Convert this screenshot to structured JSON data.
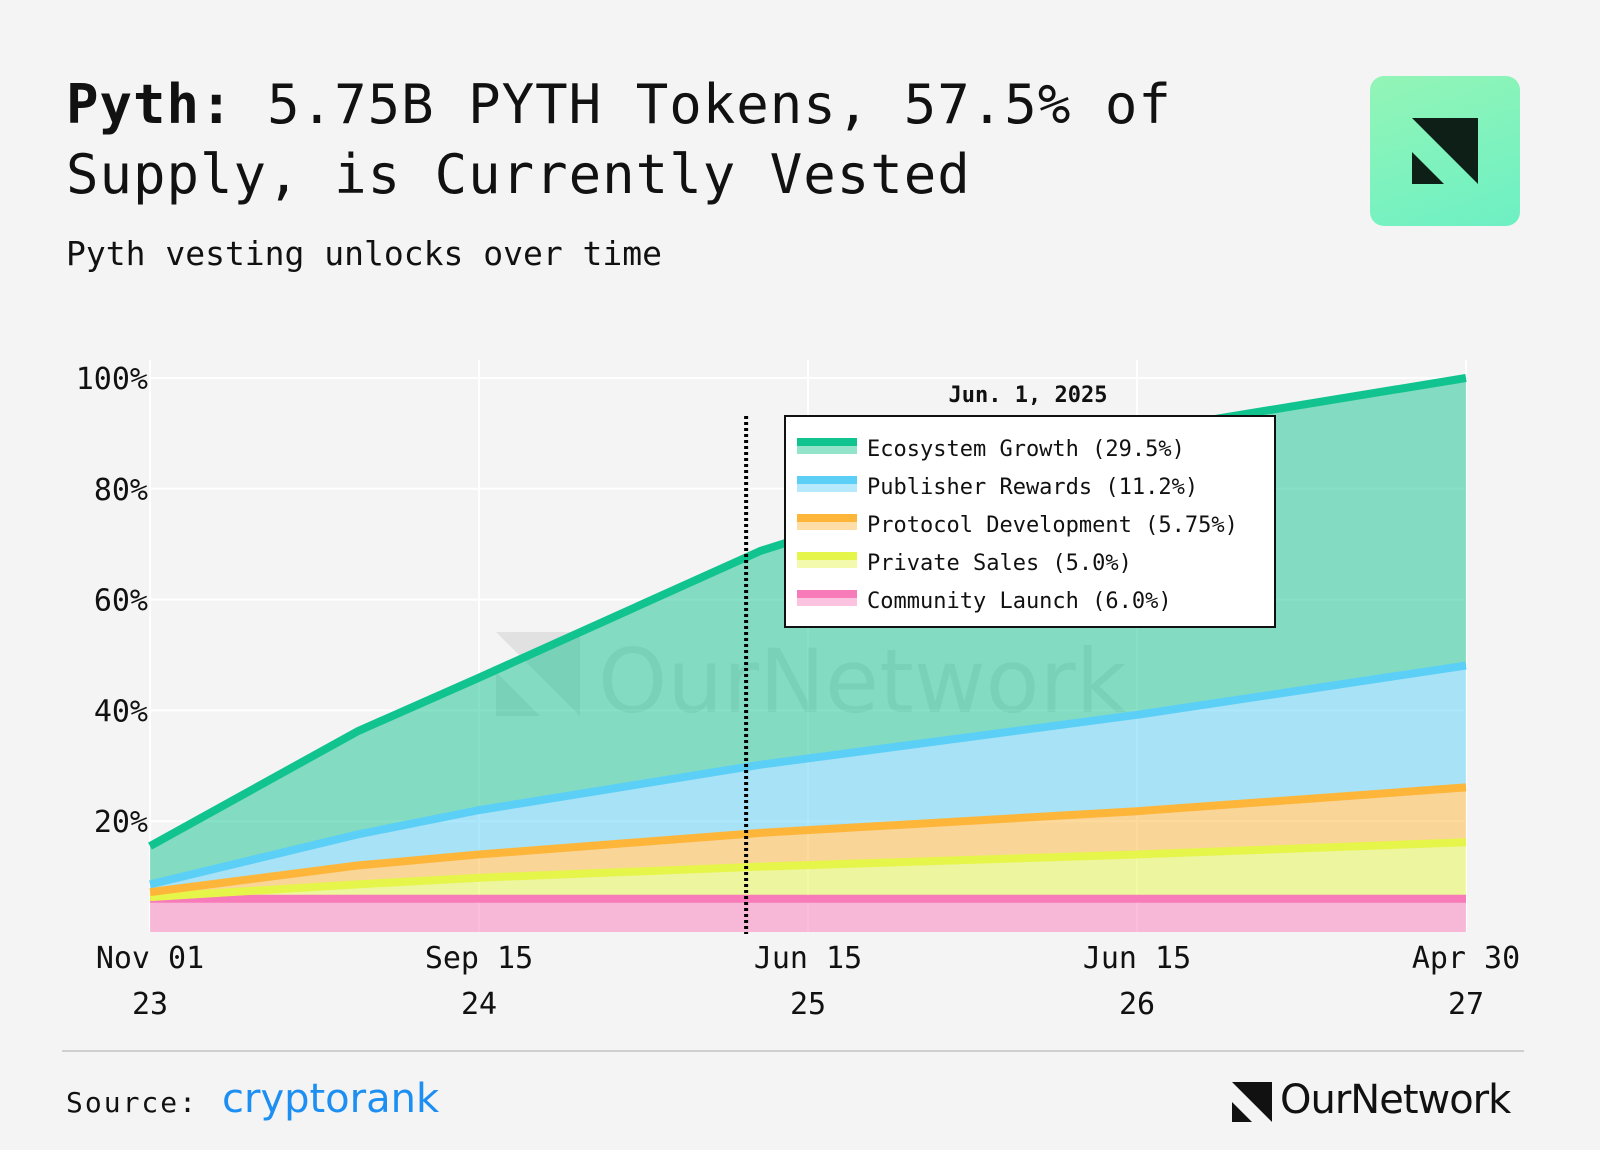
{
  "header": {
    "title_bold": "Pyth:",
    "title_rest": " 5.75B PYTH Tokens, 57.5% of Supply, is Currently Vested",
    "subtitle": "Pyth vesting unlocks over time"
  },
  "footer": {
    "source_label": "Source:",
    "source_brand": "cryptorank",
    "brand_name": "OurNetwork"
  },
  "watermark": "OurNetwork",
  "colors": {
    "ecosystem": "#11c48f",
    "publisher": "#5ccff7",
    "protocol": "#fdb63a",
    "private": "#e6f54a",
    "community": "#f77bb8"
  },
  "chart_data": {
    "type": "area",
    "stacked": true,
    "x_dates": [
      "2023-11-01",
      "2024-05-20",
      "2024-09-15",
      "2025-06-15",
      "2026-06-15",
      "2027-04-30"
    ],
    "x_tick_labels": [
      {
        "month": "Nov 01",
        "year": "23"
      },
      {
        "month": "Sep 15",
        "year": "24"
      },
      {
        "month": "Jun 15",
        "year": "25"
      },
      {
        "month": "Jun 15",
        "year": "26"
      },
      {
        "month": "Apr 30",
        "year": "27"
      }
    ],
    "y_ticks": [
      "20%",
      "40%",
      "60%",
      "80%",
      "100%"
    ],
    "ylim": [
      0,
      100
    ],
    "grid": true,
    "series": [
      {
        "name": "Community Launch",
        "key": "community",
        "values": [
          6.0,
          6.0,
          6.0,
          6.0,
          6.0,
          6.0
        ]
      },
      {
        "name": "Private Sales",
        "key": "private",
        "values": [
          0.3,
          2.6,
          3.8,
          5.8,
          8.0,
          10.2
        ]
      },
      {
        "name": "Protocol Development",
        "key": "protocol",
        "values": [
          0.9,
          3.4,
          4.2,
          6.1,
          7.8,
          9.9
        ]
      },
      {
        "name": "Publisher Rewards",
        "key": "publisher",
        "values": [
          1.4,
          5.6,
          8.0,
          12.3,
          17.4,
          22.0
        ]
      },
      {
        "name": "Ecosystem Growth",
        "key": "ecosystem",
        "values": [
          6.9,
          18.6,
          23.9,
          38.6,
          51.1,
          51.9
        ]
      }
    ],
    "tooltip": {
      "date": "Jun. 1, 2025",
      "x_date": "2025-06-01",
      "entries": [
        {
          "key": "ecosystem",
          "label": "Ecosystem Growth (29.5%)"
        },
        {
          "key": "publisher",
          "label": "Publisher Rewards (11.2%)"
        },
        {
          "key": "protocol",
          "label": "Protocol Development (5.75%)"
        },
        {
          "key": "private",
          "label": "Private Sales (5.0%)"
        },
        {
          "key": "community",
          "label": "Community Launch (6.0%)"
        }
      ]
    }
  }
}
